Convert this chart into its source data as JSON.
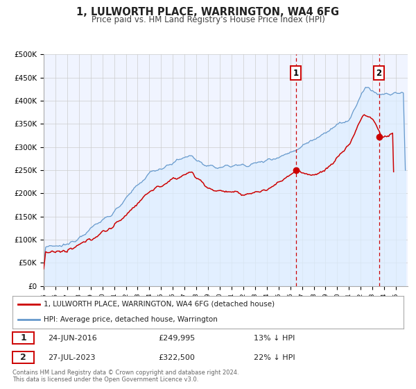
{
  "title": "1, LULWORTH PLACE, WARRINGTON, WA4 6FG",
  "subtitle": "Price paid vs. HM Land Registry's House Price Index (HPI)",
  "ylabel_ticks": [
    "£0",
    "£50K",
    "£100K",
    "£150K",
    "£200K",
    "£250K",
    "£300K",
    "£350K",
    "£400K",
    "£450K",
    "£500K"
  ],
  "ytick_values": [
    0,
    50000,
    100000,
    150000,
    200000,
    250000,
    300000,
    350000,
    400000,
    450000,
    500000
  ],
  "xlim": [
    1995,
    2026
  ],
  "ylim": [
    0,
    500000
  ],
  "hpi_color": "#6699cc",
  "hpi_fill_color": "#ddeeff",
  "price_color": "#cc0000",
  "vline_color": "#cc0000",
  "marker1_x": 2016.48,
  "marker1_y": 249995,
  "marker2_x": 2023.56,
  "marker2_y": 322500,
  "annotation1_date": "24-JUN-2016",
  "annotation1_price": "£249,995",
  "annotation1_hpi": "13% ↓ HPI",
  "annotation2_date": "27-JUL-2023",
  "annotation2_price": "£322,500",
  "annotation2_hpi": "22% ↓ HPI",
  "legend_line1": "1, LULWORTH PLACE, WARRINGTON, WA4 6FG (detached house)",
  "legend_line2": "HPI: Average price, detached house, Warrington",
  "footer": "Contains HM Land Registry data © Crown copyright and database right 2024.\nThis data is licensed under the Open Government Licence v3.0.",
  "background_color": "#ffffff",
  "grid_color": "#cccccc",
  "chart_bg": "#f0f4ff"
}
